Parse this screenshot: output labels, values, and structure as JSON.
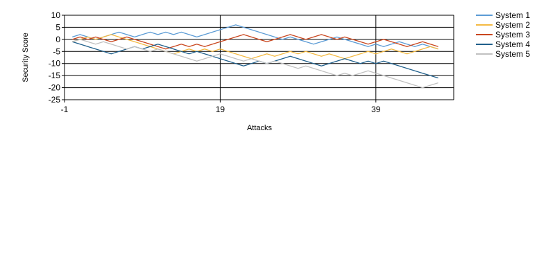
{
  "chart_data": {
    "type": "line",
    "xlabel": "Attacks",
    "ylabel": "Security Score",
    "xlim": [
      -1,
      49
    ],
    "ylim": [
      -25,
      10
    ],
    "xticks": [
      -1,
      19,
      39
    ],
    "yticks": [
      10,
      5,
      0,
      -5,
      -10,
      -15,
      -20,
      -25
    ],
    "grid": true,
    "legend": "right",
    "series": [
      {
        "name": "System 1",
        "color": "#5b9bd5",
        "values": [
          1,
          2,
          1,
          0,
          1,
          2,
          3,
          2,
          1,
          2,
          3,
          2,
          3,
          2,
          3,
          2,
          1,
          2,
          3,
          4,
          5,
          6,
          5,
          4,
          3,
          2,
          1,
          0,
          1,
          0,
          -1,
          -2,
          -1,
          0,
          1,
          0,
          -1,
          -2,
          -3,
          -2,
          -3,
          -2,
          -1,
          -2,
          -3,
          -2,
          -3,
          -4
        ]
      },
      {
        "name": "System 2",
        "color": "#f4b942",
        "values": [
          -1,
          0,
          1,
          0,
          1,
          2,
          1,
          0,
          -1,
          -2,
          -3,
          -4,
          -5,
          -6,
          -5,
          -4,
          -5,
          -4,
          -5,
          -4,
          -5,
          -6,
          -7,
          -8,
          -7,
          -6,
          -7,
          -6,
          -5,
          -6,
          -5,
          -6,
          -7,
          -6,
          -7,
          -8,
          -7,
          -6,
          -5,
          -6,
          -5,
          -4,
          -5,
          -6,
          -5,
          -4,
          -3,
          -4
        ]
      },
      {
        "name": "System 3",
        "color": "#c9461e",
        "values": [
          0,
          1,
          0,
          1,
          0,
          -1,
          0,
          1,
          0,
          -1,
          -2,
          -3,
          -4,
          -3,
          -2,
          -3,
          -2,
          -3,
          -2,
          -1,
          0,
          1,
          2,
          1,
          0,
          -1,
          0,
          1,
          2,
          1,
          0,
          1,
          2,
          1,
          0,
          1,
          0,
          -1,
          -2,
          -1,
          0,
          -1,
          -2,
          -3,
          -2,
          -1,
          -2,
          -3
        ]
      },
      {
        "name": "System 4",
        "color": "#1f5f8b",
        "values": [
          -1,
          -2,
          -3,
          -4,
          -5,
          -6,
          -5,
          -4,
          -3,
          -4,
          -3,
          -2,
          -3,
          -4,
          -5,
          -6,
          -5,
          -6,
          -7,
          -8,
          -9,
          -10,
          -11,
          -10,
          -9,
          -10,
          -9,
          -8,
          -7,
          -8,
          -9,
          -10,
          -11,
          -10,
          -9,
          -8,
          -9,
          -10,
          -9,
          -10,
          -9,
          -10,
          -11,
          -12,
          -13,
          -14,
          -15,
          -16
        ]
      },
      {
        "name": "System 5",
        "color": "#c0c0c0",
        "values": [
          -1,
          0,
          -1,
          -2,
          -1,
          -2,
          -3,
          -4,
          -3,
          -4,
          -5,
          -4,
          -5,
          -6,
          -7,
          -8,
          -9,
          -8,
          -7,
          -6,
          -7,
          -8,
          -9,
          -8,
          -9,
          -10,
          -9,
          -10,
          -11,
          -12,
          -11,
          -12,
          -13,
          -14,
          -15,
          -14,
          -15,
          -14,
          -13,
          -14,
          -15,
          -16,
          -17,
          -18,
          -19,
          -20,
          -19,
          -18
        ]
      }
    ]
  }
}
